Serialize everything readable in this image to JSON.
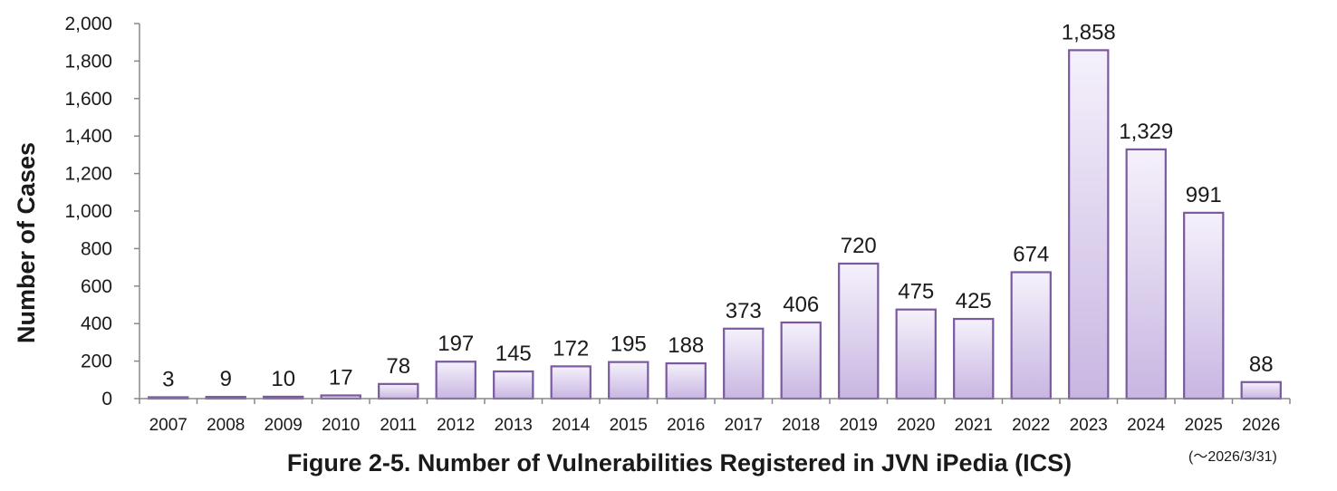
{
  "chart_data": {
    "type": "bar",
    "title": "Figure 2-5. Number of Vulnerabilities Registered in JVN iPedia (ICS)",
    "ylabel": "Number of Cases",
    "xlabel": "",
    "note": "(～2026/3/31)",
    "categories": [
      "2007",
      "2008",
      "2009",
      "2010",
      "2011",
      "2012",
      "2013",
      "2014",
      "2015",
      "2016",
      "2017",
      "2018",
      "2019",
      "2020",
      "2021",
      "2022",
      "2023",
      "2024",
      "2025",
      "2026"
    ],
    "values": [
      3,
      9,
      10,
      17,
      78,
      197,
      145,
      172,
      195,
      188,
      373,
      406,
      720,
      475,
      425,
      674,
      1858,
      1329,
      991,
      88
    ],
    "value_labels": [
      "3",
      "9",
      "10",
      "17",
      "78",
      "197",
      "145",
      "172",
      "195",
      "188",
      "373",
      "406",
      "720",
      "475",
      "425",
      "674",
      "1,858",
      "1,329",
      "991",
      "88"
    ],
    "ylim": [
      0,
      2000
    ],
    "yticks": [
      0,
      200,
      400,
      600,
      800,
      1000,
      1200,
      1400,
      1600,
      1800,
      2000
    ],
    "ytick_labels": [
      "0",
      "200",
      "400",
      "600",
      "800",
      "1,000",
      "1,200",
      "1,400",
      "1,600",
      "1,800",
      "2,000"
    ],
    "grid": false,
    "colors": {
      "bar_top": "#f5f1fb",
      "bar_bottom": "#c8b6e2",
      "bar_stroke": "#7a5a9e",
      "axis": "#888888"
    }
  }
}
